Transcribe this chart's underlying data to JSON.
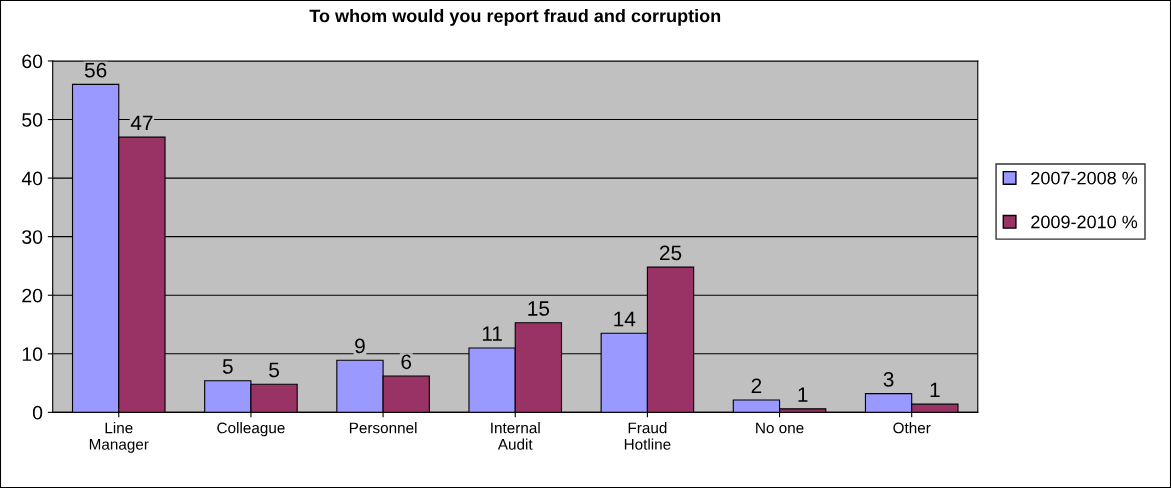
{
  "chart_data": {
    "type": "bar",
    "title": "To whom would you report fraud and corruption",
    "categories": [
      "Line\nManager",
      "Colleague",
      "Personnel",
      "Internal\nAudit",
      "Fraud\nHotline",
      "No one",
      "Other"
    ],
    "series": [
      {
        "name": "2007-2008 %",
        "color": "#9999ff",
        "values": [
          56,
          5.4,
          8.9,
          11,
          13.5,
          2.1,
          3.2
        ],
        "value_labels": [
          "56",
          "5",
          "9",
          "11",
          "14",
          "2",
          "3"
        ]
      },
      {
        "name": "2009-2010 %",
        "color": "#993366",
        "values": [
          47,
          4.8,
          6.2,
          15.3,
          24.8,
          0.6,
          1.4
        ],
        "value_labels": [
          "47",
          "5",
          "6",
          "15",
          "25",
          "1",
          "1"
        ]
      }
    ],
    "ylim": [
      0,
      60
    ],
    "yticks": [
      0,
      10,
      20,
      30,
      40,
      50,
      60
    ],
    "grid": "y",
    "legend": "right"
  }
}
